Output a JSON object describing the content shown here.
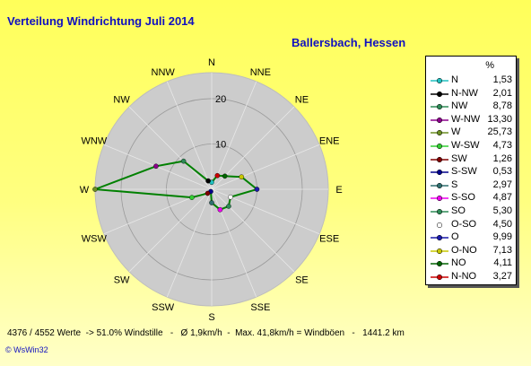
{
  "title": "Verteilung Windrichtung    Juli 2014",
  "location": "Ballersbach, Hessen",
  "footer": "4376 / 4552 Werte  -> 51.0% Windstille   -   Ø 1,9km/h  -  Max. 41,8km/h = Windböen   -   1441.2 km",
  "brand": "© WsWin32",
  "legend": {
    "header": "%",
    "colors": [
      "#20c0c0",
      "#000000",
      "#2e8b57",
      "#8b008b",
      "#6b8e23",
      "#32cd32",
      "#800000",
      "#00008b",
      "#2f6f6f",
      "#ee00ee",
      "#2e8b57",
      "#ffffff",
      "#1a1aaa",
      "#c8c800",
      "#006400",
      "#cc0000"
    ]
  },
  "chart_data": {
    "type": "radar",
    "directions": [
      "N",
      "NNE",
      "NE",
      "ENE",
      "E",
      "ESE",
      "SE",
      "SSE",
      "S",
      "SSW",
      "SW",
      "WSW",
      "W",
      "WNW",
      "NW",
      "NNW"
    ],
    "legend_entries": [
      {
        "label": "N",
        "value": "1,53"
      },
      {
        "label": "N-NW",
        "value": "2,01"
      },
      {
        "label": "NW",
        "value": "8,78"
      },
      {
        "label": "W-NW",
        "value": "13,30"
      },
      {
        "label": "W",
        "value": "25,73"
      },
      {
        "label": "W-SW",
        "value": "4,73"
      },
      {
        "label": "SW",
        "value": "1,26"
      },
      {
        "label": "S-SW",
        "value": "0,53"
      },
      {
        "label": "S",
        "value": "2,97"
      },
      {
        "label": "S-SO",
        "value": "4,87"
      },
      {
        "label": "SO",
        "value": "5,30"
      },
      {
        "label": "O-SO",
        "value": "4,50"
      },
      {
        "label": "O",
        "value": "9,99"
      },
      {
        "label": "O-NO",
        "value": "7,13"
      },
      {
        "label": "NO",
        "value": "4,11"
      },
      {
        "label": "N-NO",
        "value": "3,27"
      }
    ],
    "values": [
      1.53,
      3.27,
      4.11,
      7.13,
      9.99,
      4.5,
      5.3,
      4.87,
      2.97,
      0.53,
      1.26,
      4.73,
      25.73,
      13.3,
      8.78,
      2.01
    ],
    "rmax": 25.73,
    "rings": [
      10,
      20
    ],
    "line_color": "#008000"
  }
}
